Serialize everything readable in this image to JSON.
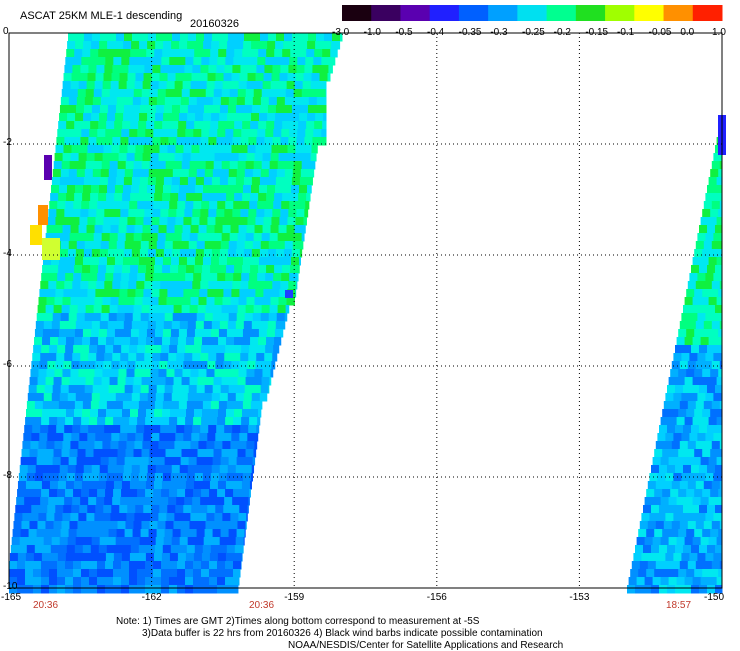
{
  "header": {
    "title": "ASCAT 25KM MLE-1 descending",
    "date": "20160326"
  },
  "colorbar": {
    "labels": [
      "-3.0",
      "-1.0",
      "-0.5",
      "-0.4",
      "-0.35",
      "-0.3",
      "-0.25",
      "-0.2",
      "-0.15",
      "-0.1",
      "-0.05",
      "0.0",
      "1.0"
    ],
    "colors": [
      "#1a0010",
      "#3a0060",
      "#5a00b0",
      "#2020ff",
      "#0060ff",
      "#00a0ff",
      "#00e0f0",
      "#00ff90",
      "#20e020",
      "#a0ff00",
      "#ffff00",
      "#ff9000",
      "#ff2000"
    ]
  },
  "map": {
    "y_ticks": [
      "0",
      "-2",
      "-4",
      "-6",
      "-8",
      "-10"
    ],
    "x_ticks": [
      "-165",
      "-162",
      "-159",
      "-156",
      "-153",
      "-150"
    ],
    "times": [
      "20:36",
      "20:36",
      "18:57"
    ],
    "grid": true
  },
  "notes": {
    "line1": "Note: 1) Times are GMT 2)Times along bottom correspond to measurement at -5S",
    "line2": "3)Data buffer is 22 hrs from 20160326 4) Black wind barbs indicate possible contamination",
    "line3": "NOAA/NESDIS/Center for Satellite Applications and Research"
  }
}
